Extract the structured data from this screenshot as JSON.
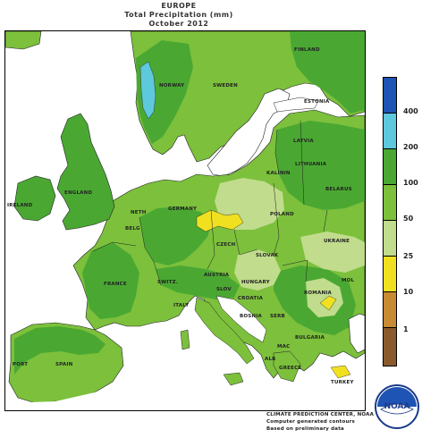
{
  "title": {
    "line1": "EUROPE",
    "line2": "Total Precipitation (mm)",
    "line3": "October 2012"
  },
  "legend": {
    "labels": [
      "400",
      "200",
      "100",
      "50",
      "25",
      "10",
      "1"
    ],
    "colors": [
      "#1e54b4",
      "#5ec8dc",
      "#4aa832",
      "#7cc03c",
      "#c0dc8c",
      "#f0e020",
      "#c88a32",
      "#8a5a2c"
    ]
  },
  "map": {
    "country_labels": {
      "finland": "FINLAND",
      "norway": "NORWAY",
      "sweden": "SWEDEN",
      "estonia": "ESTONIA",
      "latvia": "LATVIA",
      "lithuania": "LITHUANIA",
      "baltic": "KALININ",
      "belarus": "BELARUS",
      "ireland": "IRELAND",
      "england": "ENGLAND",
      "germany": "GERMANY",
      "poland": "POLAND",
      "neth": "NETH",
      "belg": "BELG",
      "czech": "CZECH",
      "slovak": "SLOVAK",
      "ukraine": "UKRAINE",
      "france": "FRANCE",
      "switz": "SWITZ.",
      "austria": "AUSTRIA",
      "hungary": "HUNGARY",
      "slov": "SLOV",
      "croatia": "CROATIA",
      "romania": "ROMANIA",
      "mol": "MOL",
      "italy": "ITALY",
      "bosnia": "BOSNIA",
      "serb": "SERB",
      "bulgaria": "BULGARIA",
      "mac": "MAC",
      "alb": "ALB",
      "greece": "GREECE",
      "portugal": "PORT",
      "spain": "SPAIN",
      "turkey": "TURKEY"
    }
  },
  "footer": {
    "line1": "CLIMATE PREDICTION CENTER, NOAA",
    "line2": "Computer generated contours",
    "line3": "Based on preliminary data"
  },
  "logo": {
    "text": "NOAA"
  }
}
